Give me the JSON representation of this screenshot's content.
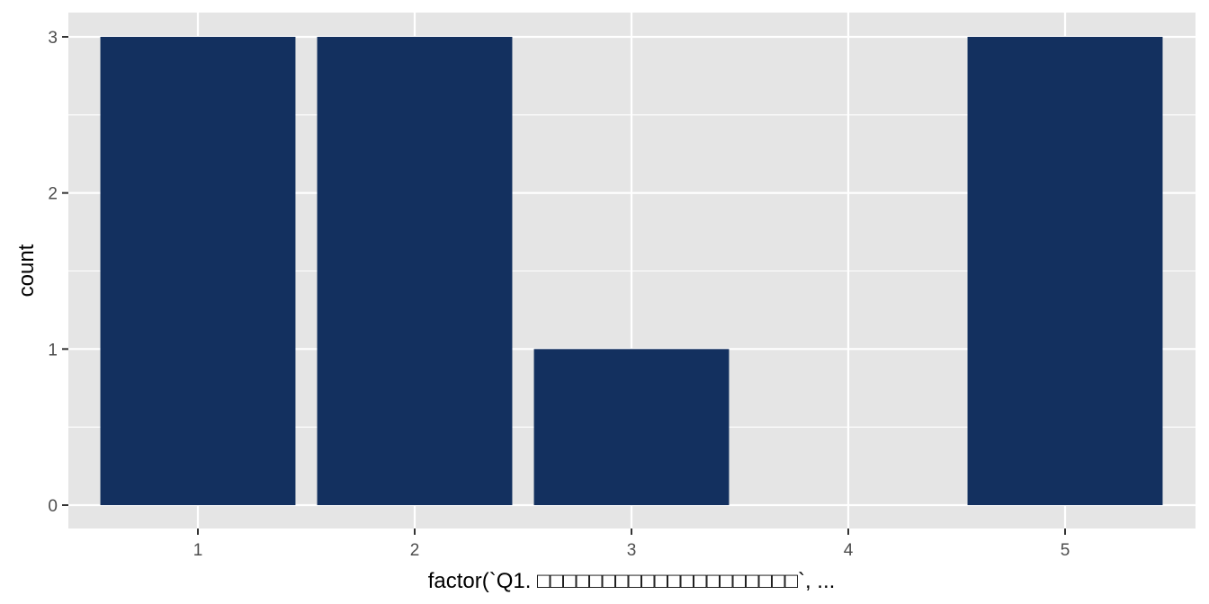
{
  "colors": {
    "panel_background": "#e5e5e5",
    "bar_fill": "#13305f",
    "grid": "#ffffff"
  },
  "chart_data": {
    "type": "bar",
    "categories": [
      "1",
      "2",
      "3",
      "4",
      "5"
    ],
    "values": [
      3,
      3,
      1,
      0,
      3
    ],
    "xlabel": "factor(`Q1. □□□□□□□□□□□□□□□□□□□□`, ...",
    "ylabel": "count",
    "ylim": [
      0,
      3
    ],
    "yticks": [
      0,
      1,
      2,
      3
    ],
    "grid": true,
    "legend": "none"
  }
}
